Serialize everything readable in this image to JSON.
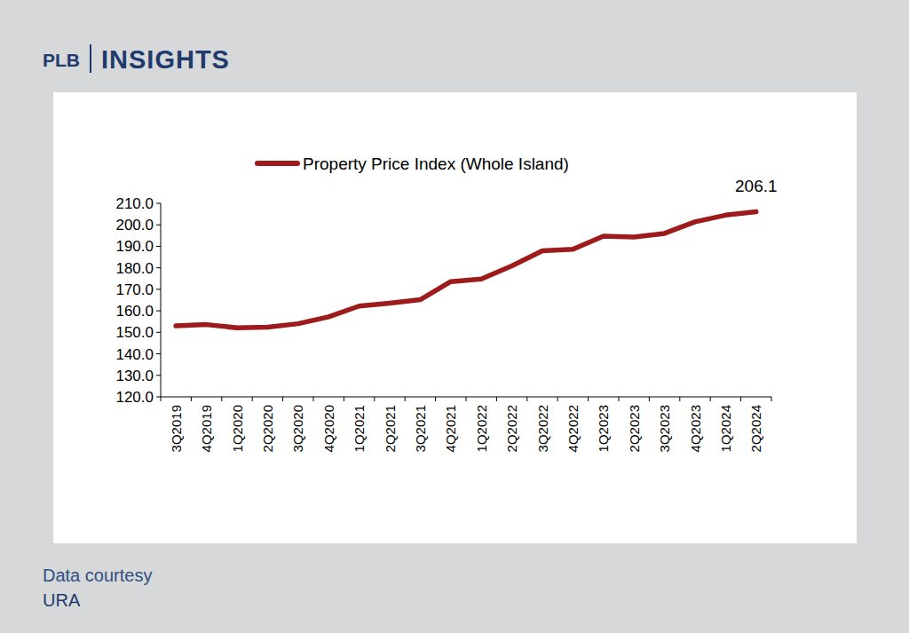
{
  "header": {
    "brand": "PLB",
    "title": "INSIGHTS"
  },
  "footer": {
    "note": "Data courtesy",
    "source": "URA"
  },
  "chart_data": {
    "type": "line",
    "categories": [
      "3Q2019",
      "4Q2019",
      "1Q2020",
      "2Q2020",
      "3Q2020",
      "4Q2020",
      "1Q2021",
      "2Q2021",
      "3Q2021",
      "4Q2021",
      "1Q2022",
      "2Q2022",
      "3Q2022",
      "4Q2022",
      "1Q2023",
      "2Q2023",
      "3Q2023",
      "4Q2023",
      "1Q2024",
      "2Q2024"
    ],
    "series": [
      {
        "name": "Property Price Index (Whole Island)",
        "color": "#9e1b1b",
        "line_style": "solid",
        "values": [
          153.0,
          153.6,
          152.1,
          152.4,
          154.0,
          157.2,
          162.2,
          163.6,
          165.2,
          173.6,
          174.8,
          180.9,
          187.9,
          188.6,
          194.7,
          194.3,
          196.0,
          201.4,
          204.5,
          206.1
        ],
        "value_labels": [
          null,
          null,
          null,
          null,
          null,
          null,
          null,
          null,
          null,
          null,
          null,
          null,
          null,
          null,
          null,
          null,
          null,
          null,
          null,
          "206.1"
        ]
      }
    ],
    "ylim": [
      120,
      210
    ],
    "yticks": [
      {
        "value": 120,
        "label": "120.0"
      },
      {
        "value": 130,
        "label": "130.0"
      },
      {
        "value": 140,
        "label": "140.0"
      },
      {
        "value": 150,
        "label": "150.0"
      },
      {
        "value": 160,
        "label": "160.0"
      },
      {
        "value": 170,
        "label": "170.0"
      },
      {
        "value": 180,
        "label": "180.0"
      },
      {
        "value": 190,
        "label": "190.0"
      },
      {
        "value": 200,
        "label": "200.0"
      },
      {
        "value": 210,
        "label": "210.0"
      }
    ],
    "grid": false,
    "legend": "top"
  }
}
